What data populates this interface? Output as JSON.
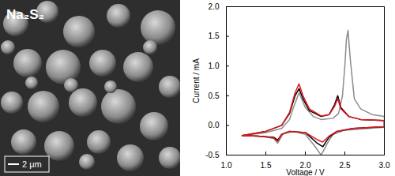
{
  "image_panel": {
    "label": "Na₂S₂",
    "scale_bar": "2 μm"
  },
  "chart_data": {
    "type": "line",
    "x_label": "Voltage / V",
    "y_label": "Current / mA",
    "xlim": [
      1.0,
      3.0
    ],
    "xticks": [
      {
        "value": 1,
        "label": "1.0"
      },
      1.5,
      {
        "value": 2,
        "label": "2.0"
      },
      2.5,
      {
        "value": 3,
        "label": "3.0"
      }
    ],
    "ylim": [
      -0.5,
      2.0
    ],
    "yticks": [
      -0.5,
      {
        "value": 0,
        "label": "0.0"
      },
      0.5,
      {
        "value": 1,
        "label": "1.0"
      },
      1.5,
      {
        "value": 2,
        "label": "2.0"
      }
    ],
    "series": [
      {
        "color": "#8c8c8c",
        "x": [
          1.2,
          1.5,
          1.7,
          1.8,
          1.85,
          1.92,
          2.0,
          2.1,
          2.2,
          2.35,
          2.42,
          2.47,
          2.5,
          2.52,
          2.54,
          2.57,
          2.62,
          2.7,
          2.85,
          3.0,
          3.0,
          2.8,
          2.5,
          2.35,
          2.28,
          2.2,
          2.12,
          2.0,
          1.85,
          1.72,
          1.65,
          1.6,
          1.5,
          1.4,
          1.2
        ],
        "values": [
          -0.17,
          -0.12,
          -0.05,
          0.1,
          0.3,
          0.55,
          0.3,
          0.15,
          0.1,
          0.12,
          0.2,
          0.5,
          1.0,
          1.45,
          1.6,
          1.1,
          0.45,
          0.28,
          0.18,
          0.15,
          -0.03,
          -0.05,
          -0.08,
          -0.15,
          -0.3,
          -0.5,
          -0.35,
          -0.15,
          -0.1,
          -0.14,
          -0.3,
          -0.22,
          -0.19,
          -0.18,
          -0.17
        ]
      },
      {
        "color": "#000000",
        "x": [
          1.2,
          1.5,
          1.7,
          1.8,
          1.87,
          1.92,
          1.97,
          2.05,
          2.2,
          2.3,
          2.37,
          2.41,
          2.45,
          2.55,
          2.7,
          3.0,
          3.0,
          2.6,
          2.4,
          2.3,
          2.22,
          2.15,
          2.0,
          1.8,
          1.7,
          1.65,
          1.6,
          1.4,
          1.2
        ],
        "values": [
          -0.17,
          -0.1,
          0.0,
          0.2,
          0.5,
          0.62,
          0.45,
          0.25,
          0.15,
          0.18,
          0.35,
          0.5,
          0.3,
          0.15,
          0.1,
          0.08,
          -0.02,
          -0.05,
          -0.1,
          -0.2,
          -0.36,
          -0.3,
          -0.12,
          -0.1,
          -0.15,
          -0.25,
          -0.2,
          -0.18,
          -0.17
        ]
      },
      {
        "color": "#e8141c",
        "x": [
          1.2,
          1.5,
          1.7,
          1.8,
          1.87,
          1.92,
          1.97,
          2.05,
          2.2,
          2.3,
          2.37,
          2.41,
          2.45,
          2.55,
          2.7,
          3.0,
          3.0,
          2.6,
          2.4,
          2.3,
          2.22,
          2.15,
          2.0,
          1.8,
          1.7,
          1.65,
          1.6,
          1.4,
          1.2
        ],
        "values": [
          -0.17,
          -0.1,
          0.0,
          0.22,
          0.55,
          0.7,
          0.5,
          0.28,
          0.16,
          0.18,
          0.32,
          0.45,
          0.28,
          0.15,
          0.1,
          0.08,
          -0.02,
          -0.05,
          -0.1,
          -0.18,
          -0.28,
          -0.24,
          -0.12,
          -0.1,
          -0.15,
          -0.27,
          -0.21,
          -0.18,
          -0.17
        ]
      }
    ]
  }
}
